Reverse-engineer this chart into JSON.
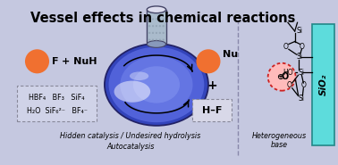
{
  "bg_color": "#c5c8e0",
  "title": "Vessel effects in chemical reactions",
  "title_fontsize": 10.5,
  "title_color": "#000000",
  "subtitle_left1": "Hidden catalysis / Undesired hydrolysis",
  "subtitle_left2": "Autocatalysis",
  "subtitle_right": "Heterogeneous\nbase",
  "ball_color": "#f07030",
  "box_chem_line1": "HBF₄   BF₃   SiF₄",
  "box_chem_line2": "H₂O  SiF₆²⁻   BF₄⁻",
  "hf_box_text": "H–F",
  "nu_label": "Nu",
  "f_label": "F",
  "sio2_color": "#5ddcdc",
  "divider_color": "#8888aa",
  "pink_ball_color": "#ffbbbb",
  "pink_ball_border": "#cc2222",
  "flask_body_color": "#5566dd",
  "flask_neck_color": "#aabbcc",
  "flask_highlight_color": "#9999ee"
}
